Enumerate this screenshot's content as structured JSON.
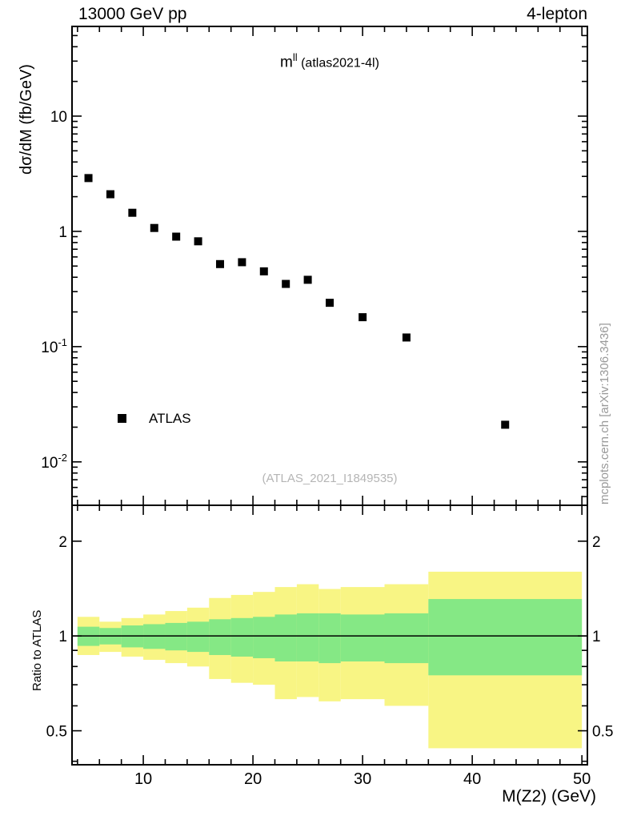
{
  "header": {
    "left": "13000 GeV pp",
    "right": "4-lepton"
  },
  "plot": {
    "title_m": "m",
    "title_sup": "ll",
    "title_rest": " (atlas2021-4l)",
    "ylabel": "dσ/dM (fb/GeV)",
    "legend_label": "ATLAS",
    "watermark": "(ATLAS_2021_I1849535)"
  },
  "ratio": {
    "ylabel": "Ratio to ATLAS"
  },
  "xaxis_label": "M(Z2) (GeV)",
  "side_note": "mcplots.cern.ch [arXiv:1306.3436]",
  "colors": {
    "yellow_band": "#f8f584",
    "green_band": "#85e885",
    "marker": "#000000",
    "frame": "#000000",
    "watermark": "#b5b5b5",
    "side_note": "#999999"
  },
  "chart_data": {
    "type": "scatter",
    "title": "m^ll (atlas2021-4l)",
    "xlabel": "M(Z2) (GeV)",
    "ylabel": "dσ/dM (fb/GeV)",
    "xlim": [
      3.5,
      50.5
    ],
    "xticks": [
      10,
      20,
      30,
      40,
      50
    ],
    "xminor_step": 2,
    "top": {
      "ylog": true,
      "ylim": [
        0.0042,
        60
      ],
      "yticks": [
        {
          "v": 0.01,
          "base": "10",
          "exp": "-2"
        },
        {
          "v": 0.1,
          "base": "10",
          "exp": "-1"
        },
        {
          "v": 1,
          "label": "1"
        },
        {
          "v": 10,
          "label": "10"
        }
      ],
      "series": [
        {
          "name": "ATLAS",
          "x": [
            5,
            7,
            9,
            11,
            13,
            15,
            17,
            19,
            21,
            23,
            25,
            27,
            30,
            34,
            43
          ],
          "y": [
            2.9,
            2.1,
            1.45,
            1.07,
            0.9,
            0.82,
            0.52,
            0.54,
            0.45,
            0.35,
            0.38,
            0.24,
            0.18,
            0.12,
            0.021
          ]
        }
      ]
    },
    "ratio": {
      "ylog": true,
      "ylim": [
        0.39,
        2.6
      ],
      "yticks": [
        {
          "v": 0.5,
          "label": "0.5"
        },
        {
          "v": 1,
          "label": "1"
        },
        {
          "v": 2,
          "label": "2"
        }
      ],
      "yminor": [
        0.4,
        0.6,
        0.7,
        0.8,
        0.9
      ],
      "unity": 1,
      "bands": {
        "edges": [
          4,
          6,
          8,
          10,
          12,
          14,
          16,
          18,
          20,
          22,
          24,
          26,
          28,
          32,
          36,
          50
        ],
        "green_lo": [
          0.93,
          0.94,
          0.92,
          0.91,
          0.9,
          0.89,
          0.87,
          0.86,
          0.85,
          0.83,
          0.83,
          0.82,
          0.83,
          0.82,
          0.75
        ],
        "green_hi": [
          1.07,
          1.06,
          1.08,
          1.09,
          1.1,
          1.11,
          1.13,
          1.14,
          1.15,
          1.17,
          1.18,
          1.18,
          1.17,
          1.18,
          1.31
        ],
        "yellow_lo": [
          0.87,
          0.89,
          0.86,
          0.84,
          0.82,
          0.8,
          0.73,
          0.71,
          0.7,
          0.63,
          0.64,
          0.62,
          0.63,
          0.6,
          0.44
        ],
        "yellow_hi": [
          1.15,
          1.11,
          1.14,
          1.17,
          1.2,
          1.23,
          1.32,
          1.35,
          1.38,
          1.43,
          1.46,
          1.41,
          1.43,
          1.46,
          1.6
        ]
      }
    }
  }
}
